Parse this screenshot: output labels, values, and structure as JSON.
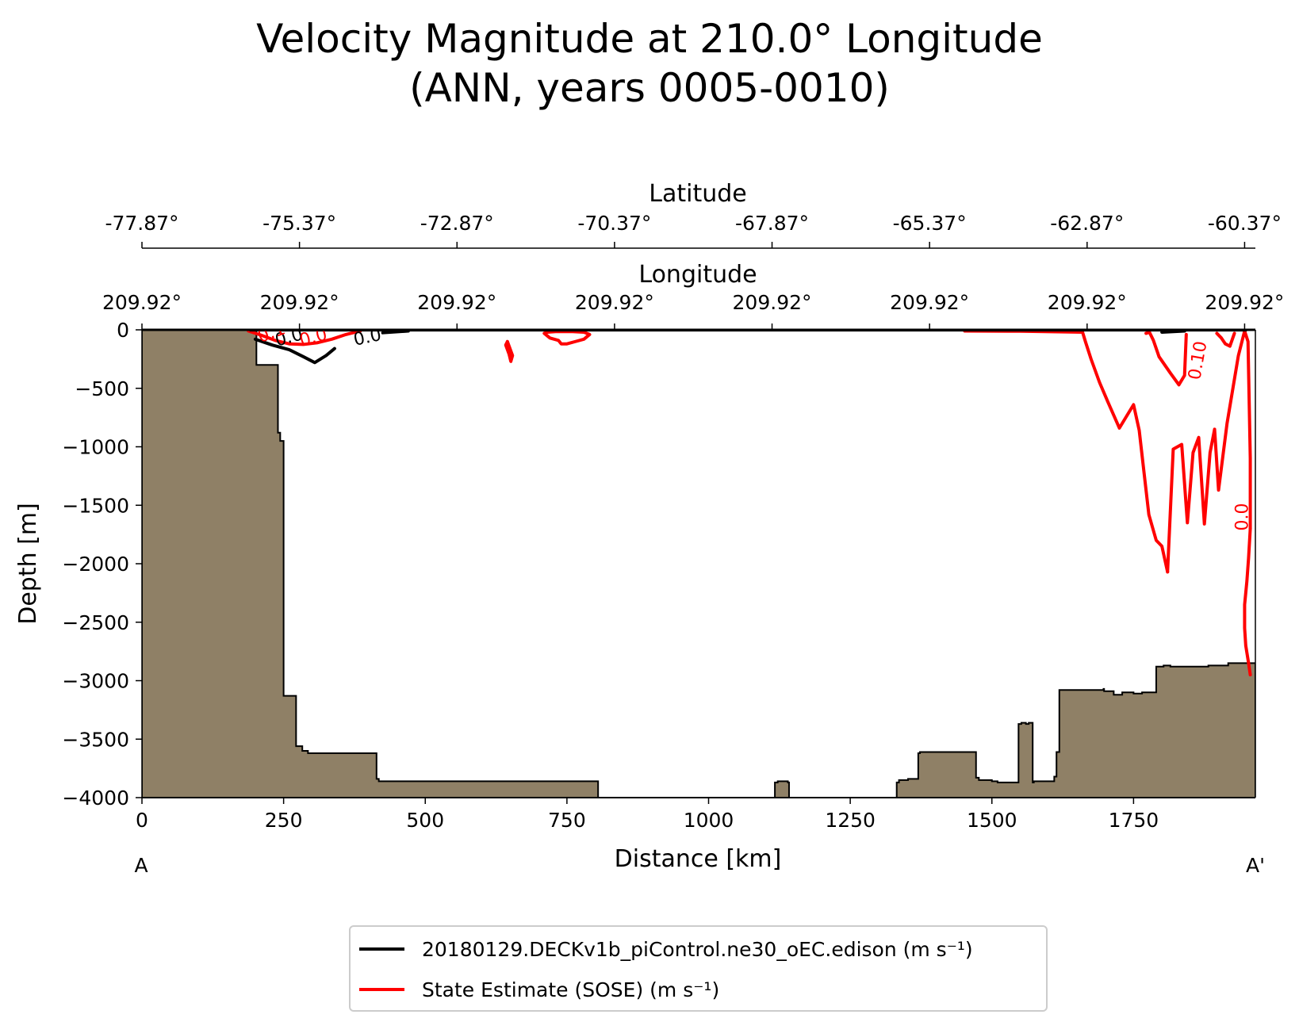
{
  "chart_data": {
    "type": "line",
    "title_line1": "Velocity Magnitude at 210.0° Longitude",
    "title_line2": "(ANN, years 0005-0010)",
    "xlabel": "Distance [km]",
    "ylabel": "Depth [m]",
    "xlim": [
      0,
      1965
    ],
    "ylim": [
      -4000,
      0
    ],
    "x_ticks": [
      0,
      250,
      500,
      750,
      1000,
      1250,
      1500,
      1750
    ],
    "y_ticks": [
      0,
      -500,
      -1000,
      -1500,
      -2000,
      -2500,
      -3000,
      -3500,
      -4000
    ],
    "y_tick_labels": [
      "0",
      "−500",
      "−1000",
      "−1500",
      "−2000",
      "−2500",
      "−3000",
      "−3500",
      "−4000"
    ],
    "section_start_label": "A",
    "section_end_label": "A'",
    "latitude_axis": {
      "label": "Latitude",
      "tick_positions_km": [
        0,
        278,
        556,
        834,
        1112,
        1390,
        1668,
        1946
      ],
      "tick_labels": [
        "-77.87°",
        "-75.37°",
        "-72.87°",
        "-70.37°",
        "-67.87°",
        "-65.37°",
        "-62.87°",
        "-60.37°"
      ]
    },
    "longitude_axis": {
      "label": "Longitude",
      "tick_positions_km": [
        0,
        278,
        556,
        834,
        1112,
        1390,
        1668,
        1946
      ],
      "tick_labels": [
        "209.92°",
        "209.92°",
        "209.92°",
        "209.92°",
        "209.92°",
        "209.92°",
        "209.92°",
        "209.92°"
      ]
    },
    "bathymetry": {
      "fill_color": "#8f8066",
      "x": [
        0,
        202,
        202,
        240,
        240,
        244,
        244,
        250,
        250,
        272,
        272,
        283,
        283,
        293,
        293,
        318,
        318,
        414,
        414,
        418,
        418,
        436,
        436,
        805,
        805,
        1117,
        1117,
        1122,
        1122,
        1140,
        1140,
        1142,
        1142,
        1332,
        1332,
        1336,
        1336,
        1352,
        1352,
        1370,
        1370,
        1373,
        1373,
        1472,
        1472,
        1477,
        1477,
        1500,
        1500,
        1510,
        1510,
        1547,
        1547,
        1552,
        1552,
        1560,
        1560,
        1565,
        1565,
        1572,
        1572,
        1574,
        1574,
        1578,
        1578,
        1610,
        1610,
        1614,
        1614,
        1619,
        1619,
        1697,
        1697,
        1698,
        1698,
        1715,
        1715,
        1730,
        1730,
        1750,
        1750,
        1765,
        1765,
        1790,
        1790,
        1803,
        1803,
        1815,
        1815,
        1832,
        1832,
        1882,
        1882,
        1917,
        1917,
        1950,
        1950,
        1965
      ],
      "depth": [
        0,
        0,
        -300,
        -300,
        -880,
        -880,
        -950,
        -950,
        -3130,
        -3130,
        -3560,
        -3560,
        -3600,
        -3600,
        -3620,
        -3620,
        -3620,
        -3620,
        -3840,
        -3840,
        -3860,
        -3860,
        -3860,
        -3860,
        -4000,
        -4000,
        -3870,
        -3870,
        -3860,
        -3860,
        -3870,
        -3870,
        -4000,
        -4000,
        -3870,
        -3870,
        -3850,
        -3850,
        -3840,
        -3840,
        -3620,
        -3620,
        -3610,
        -3610,
        -3830,
        -3830,
        -3850,
        -3850,
        -3860,
        -3860,
        -3870,
        -3870,
        -3370,
        -3370,
        -3360,
        -3360,
        -3370,
        -3370,
        -3360,
        -3360,
        -3870,
        -3870,
        -3860,
        -3860,
        -3860,
        -3860,
        -3820,
        -3820,
        -3610,
        -3610,
        -3080,
        -3080,
        -3070,
        -3070,
        -3090,
        -3090,
        -3120,
        -3120,
        -3100,
        -3100,
        -3110,
        -3110,
        -3100,
        -3100,
        -2880,
        -2880,
        -2870,
        -2870,
        -2880,
        -2880,
        -2880,
        -2880,
        -2870,
        -2870,
        -2850,
        -2850,
        -2850,
        -2850
      ]
    },
    "series": [
      {
        "name": "20180129.DECKv1b_piControl.ne30_oEC.edison (m s⁻¹)",
        "color": "#000000",
        "contour_labels": [
          "0.0",
          "0.0"
        ],
        "contours": [
          {
            "x": [
              200,
              230,
              260,
              285,
              305,
              325,
              340
            ],
            "depth": [
              -80,
              -130,
              -170,
              -230,
              -280,
              -220,
              -160
            ]
          },
          {
            "x": [
              425,
              470
            ],
            "depth": [
              -25,
              -10
            ]
          },
          {
            "x": [
              1800,
              1840
            ],
            "depth": [
              -20,
              -10
            ]
          }
        ]
      },
      {
        "name": "State Estimate (SOSE) (m s⁻¹)",
        "color": "#ff0000",
        "contour_labels": [
          "0.1",
          "0.0",
          "0.10",
          "0.0"
        ],
        "contours": [
          {
            "x": [
              188,
              210,
              235,
              260,
              285,
              310,
              335,
              360,
              385
            ],
            "depth": [
              -10,
              -45,
              -90,
              -120,
              -125,
              -110,
              -80,
              -40,
              -10
            ]
          },
          {
            "x": [
              645,
              648,
              651,
              654,
              651,
              648,
              645,
              642,
              645
            ],
            "depth": [
              -100,
              -140,
              -180,
              -220,
              -270,
              -210,
              -170,
              -130,
              -100
            ]
          },
          {
            "x": [
              710,
              720,
              735,
              740,
              750,
              765,
              780,
              790,
              780,
              760,
              730,
              715,
              710
            ],
            "depth": [
              -30,
              -70,
              -90,
              -120,
              -120,
              -100,
              -80,
              -40,
              -20,
              -15,
              -15,
              -20,
              -30
            ]
          },
          {
            "x": [
              1452,
              1550,
              1660,
              1665,
              1675,
              1690,
              1705,
              1725,
              1750,
              1760,
              1768,
              1777,
              1790,
              1800,
              1810
            ],
            "depth": [
              -10,
              -12,
              -20,
              -100,
              -250,
              -450,
              -620,
              -840,
              -640,
              -860,
              -1200,
              -1580,
              -1800,
              -1850,
              -2070
            ]
          },
          {
            "x": [
              1810,
              1820,
              1835,
              1845,
              1855,
              1865,
              1875,
              1885,
              1893,
              1900,
              1915,
              1935,
              1946,
              1952,
              1954,
              1956,
              1956
            ],
            "depth": [
              -2070,
              -1020,
              -980,
              -1650,
              -1050,
              -920,
              -1660,
              -1050,
              -850,
              -1370,
              -800,
              -220,
              -10,
              -100,
              -600,
              -1100,
              -1700
            ]
          },
          {
            "x": [
              1956,
              1953,
              1950,
              1946,
              1946,
              1948,
              1953,
              1956
            ],
            "depth": [
              -1700,
              -1950,
              -2150,
              -2350,
              -2550,
              -2700,
              -2850,
              -2950
            ]
          },
          {
            "x": [
              1772,
              1778,
              1785,
              1795,
              1815,
              1830,
              1840,
              1843
            ],
            "depth": [
              -30,
              -20,
              -90,
              -230,
              -370,
              -470,
              -390,
              -40
            ]
          },
          {
            "x": [
              1897,
              1905,
              1912,
              1920,
              1928
            ],
            "depth": [
              -30,
              -70,
              -120,
              -140,
              -30
            ]
          }
        ]
      }
    ],
    "legend_position": "bottom-center"
  }
}
